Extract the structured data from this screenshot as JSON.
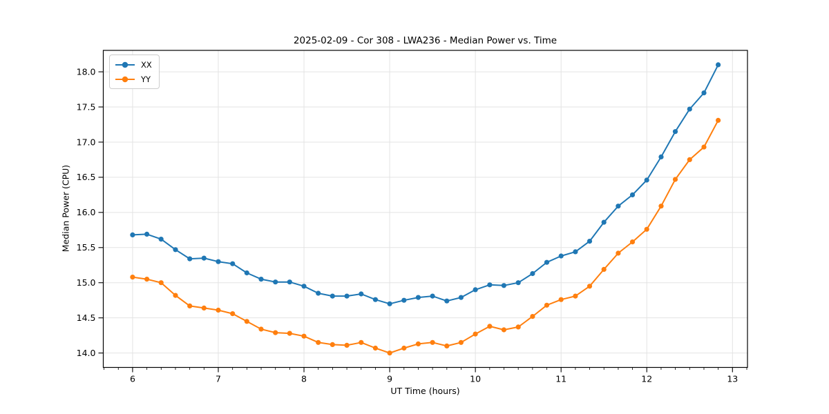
{
  "chart_data": {
    "type": "line",
    "title": "2025-02-09 - Cor 308 - LWA236 - Median Power vs. Time",
    "xlabel": "UT Time (hours)",
    "ylabel": "Median Power (CPU)",
    "xlim": [
      5.658,
      13.175
    ],
    "ylim": [
      13.795,
      18.305
    ],
    "x_ticks": [
      6,
      7,
      8,
      9,
      10,
      11,
      12,
      13
    ],
    "y_ticks": [
      14.0,
      14.5,
      15.0,
      15.5,
      16.0,
      16.5,
      17.0,
      17.5,
      18.0
    ],
    "x_minor_tick_step": 0.16667,
    "grid": true,
    "legend_position": "upper left",
    "x": [
      6.0,
      6.167,
      6.333,
      6.5,
      6.667,
      6.833,
      7.0,
      7.167,
      7.333,
      7.5,
      7.667,
      7.833,
      8.0,
      8.167,
      8.333,
      8.5,
      8.667,
      8.833,
      9.0,
      9.167,
      9.333,
      9.5,
      9.667,
      9.833,
      10.0,
      10.167,
      10.333,
      10.5,
      10.667,
      10.833,
      11.0,
      11.167,
      11.333,
      11.5,
      11.667,
      11.833,
      12.0,
      12.167,
      12.333,
      12.5,
      12.667,
      12.833
    ],
    "series": [
      {
        "name": "XX",
        "color": "#1f77b4",
        "values": [
          15.68,
          15.69,
          15.62,
          15.47,
          15.34,
          15.35,
          15.3,
          15.27,
          15.14,
          15.05,
          15.01,
          15.01,
          14.95,
          14.85,
          14.81,
          14.81,
          14.84,
          14.76,
          14.7,
          14.75,
          14.79,
          14.81,
          14.74,
          14.79,
          14.9,
          14.97,
          14.96,
          15.0,
          15.13,
          15.29,
          15.38,
          15.44,
          15.59,
          15.86,
          16.09,
          16.25,
          16.46,
          16.79,
          17.15,
          17.47,
          17.7,
          18.1
        ]
      },
      {
        "name": "YY",
        "color": "#ff7f0e",
        "values": [
          15.08,
          15.05,
          15.0,
          14.82,
          14.67,
          14.64,
          14.61,
          14.56,
          14.45,
          14.34,
          14.29,
          14.28,
          14.24,
          14.15,
          14.12,
          14.11,
          14.15,
          14.07,
          14.0,
          14.07,
          14.13,
          14.15,
          14.1,
          14.15,
          14.27,
          14.38,
          14.33,
          14.37,
          14.52,
          14.68,
          14.76,
          14.81,
          14.95,
          15.19,
          15.42,
          15.58,
          15.76,
          16.09,
          16.47,
          16.75,
          16.93,
          17.31
        ]
      }
    ]
  }
}
